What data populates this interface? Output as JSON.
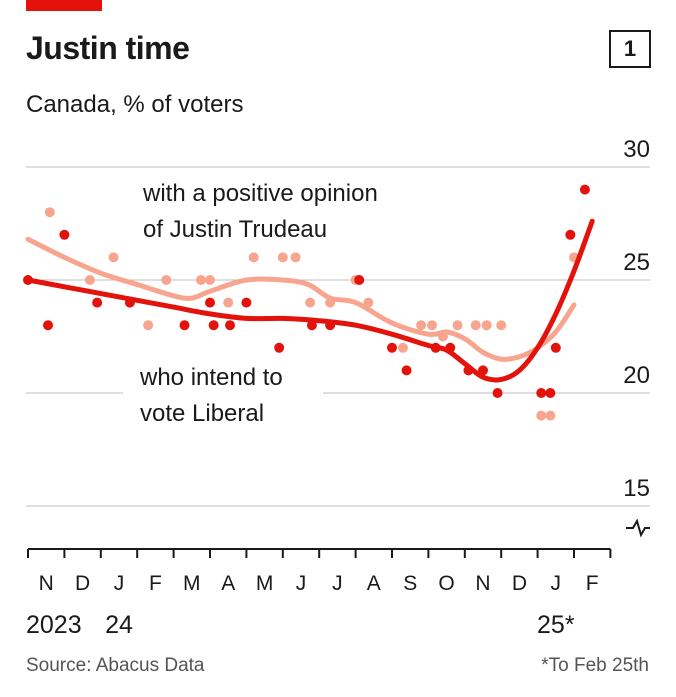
{
  "header": {
    "title": "Justin time",
    "badge": "1",
    "subtitle": "Canada, % of voters"
  },
  "footer": {
    "source": "Source: Abacus Data",
    "note": "*To Feb 25th"
  },
  "colors": {
    "brand_bar": "#e3120b",
    "vote_liberal": "#e3120b",
    "positive_opinion": "#f7a58f",
    "axis": "#1a1a1a",
    "grid": "#bfbfbf"
  },
  "chart_data": {
    "type": "scatter",
    "title": "Justin time",
    "subtitle": "Canada, % of voters",
    "ylim": [
      14,
      30
    ],
    "y_ticks": [
      30,
      25,
      20,
      15
    ],
    "y_axis_side": "right",
    "y_axis_break": true,
    "grid": true,
    "x_tick_labels": [
      "N",
      "D",
      "J",
      "F",
      "M",
      "A",
      "M",
      "J",
      "J",
      "A",
      "S",
      "O",
      "N",
      "D",
      "J",
      "F"
    ],
    "x_year_labels": [
      {
        "label": "2023",
        "month": "N"
      },
      {
        "label": "24",
        "month": "J"
      },
      {
        "label": "25*",
        "month": "J"
      }
    ],
    "x_unit": "months since start of November 2023",
    "series": [
      {
        "name": "with a positive opinion of Justin Trudeau",
        "label_lines": [
          "with a positive opinion",
          "of Justin Trudeau"
        ],
        "color": "#f7a58f",
        "points": [
          [
            0.6,
            28
          ],
          [
            1.7,
            25
          ],
          [
            2.35,
            26
          ],
          [
            3.3,
            23
          ],
          [
            3.8,
            25
          ],
          [
            4.75,
            25
          ],
          [
            5.0,
            25
          ],
          [
            5.5,
            24
          ],
          [
            6.2,
            26
          ],
          [
            7.0,
            26
          ],
          [
            7.35,
            26
          ],
          [
            7.75,
            24
          ],
          [
            8.3,
            24
          ],
          [
            9.0,
            25
          ],
          [
            9.35,
            24
          ],
          [
            10.3,
            22
          ],
          [
            10.8,
            23
          ],
          [
            11.1,
            23
          ],
          [
            11.4,
            22.5
          ],
          [
            11.8,
            23
          ],
          [
            12.3,
            23
          ],
          [
            12.6,
            23
          ],
          [
            13.0,
            23
          ],
          [
            14.1,
            19
          ],
          [
            14.35,
            19
          ],
          [
            15.0,
            26
          ]
        ],
        "trend": [
          [
            0,
            26.8
          ],
          [
            1,
            26
          ],
          [
            2,
            25.3
          ],
          [
            3,
            24.8
          ],
          [
            4,
            24.3
          ],
          [
            4.5,
            24.2
          ],
          [
            5,
            24.5
          ],
          [
            6,
            25
          ],
          [
            7,
            25
          ],
          [
            7.7,
            24.8
          ],
          [
            8.3,
            24.2
          ],
          [
            9,
            24
          ],
          [
            10,
            23.1
          ],
          [
            11,
            22.6
          ],
          [
            11.5,
            22.7
          ],
          [
            12,
            22.4
          ],
          [
            12.5,
            21.8
          ],
          [
            13,
            21.5
          ],
          [
            13.5,
            21.6
          ],
          [
            14,
            22
          ],
          [
            14.5,
            22.7
          ],
          [
            15,
            23.9
          ]
        ]
      },
      {
        "name": "who intend to vote Liberal",
        "label_lines": [
          "who intend to",
          "vote Liberal"
        ],
        "color": "#e3120b",
        "points": [
          [
            0,
            25
          ],
          [
            0.55,
            23
          ],
          [
            1.0,
            27
          ],
          [
            1.9,
            24
          ],
          [
            2.8,
            24
          ],
          [
            4.3,
            23
          ],
          [
            5.0,
            24
          ],
          [
            5.1,
            23
          ],
          [
            5.55,
            23
          ],
          [
            6.0,
            24
          ],
          [
            6.9,
            22
          ],
          [
            7.8,
            23
          ],
          [
            8.3,
            23
          ],
          [
            9.1,
            25
          ],
          [
            10.0,
            22
          ],
          [
            10.4,
            21
          ],
          [
            11.2,
            22
          ],
          [
            11.6,
            22
          ],
          [
            12.1,
            21
          ],
          [
            12.5,
            21
          ],
          [
            12.9,
            20
          ],
          [
            14.1,
            20
          ],
          [
            14.35,
            20
          ],
          [
            14.5,
            22
          ],
          [
            14.9,
            27
          ],
          [
            15.3,
            29
          ]
        ],
        "trend": [
          [
            0,
            25
          ],
          [
            1,
            24.7
          ],
          [
            2,
            24.4
          ],
          [
            3,
            24.1
          ],
          [
            4,
            23.8
          ],
          [
            5,
            23.5
          ],
          [
            6,
            23.3
          ],
          [
            7,
            23.3
          ],
          [
            8,
            23.2
          ],
          [
            9,
            23
          ],
          [
            10,
            22.6
          ],
          [
            11,
            22.1
          ],
          [
            11.5,
            21.9
          ],
          [
            12,
            21.3
          ],
          [
            12.5,
            20.7
          ],
          [
            13,
            20.6
          ],
          [
            13.5,
            21
          ],
          [
            14,
            22
          ],
          [
            14.5,
            23.5
          ],
          [
            15,
            25.4
          ],
          [
            15.5,
            27.6
          ]
        ]
      }
    ]
  }
}
